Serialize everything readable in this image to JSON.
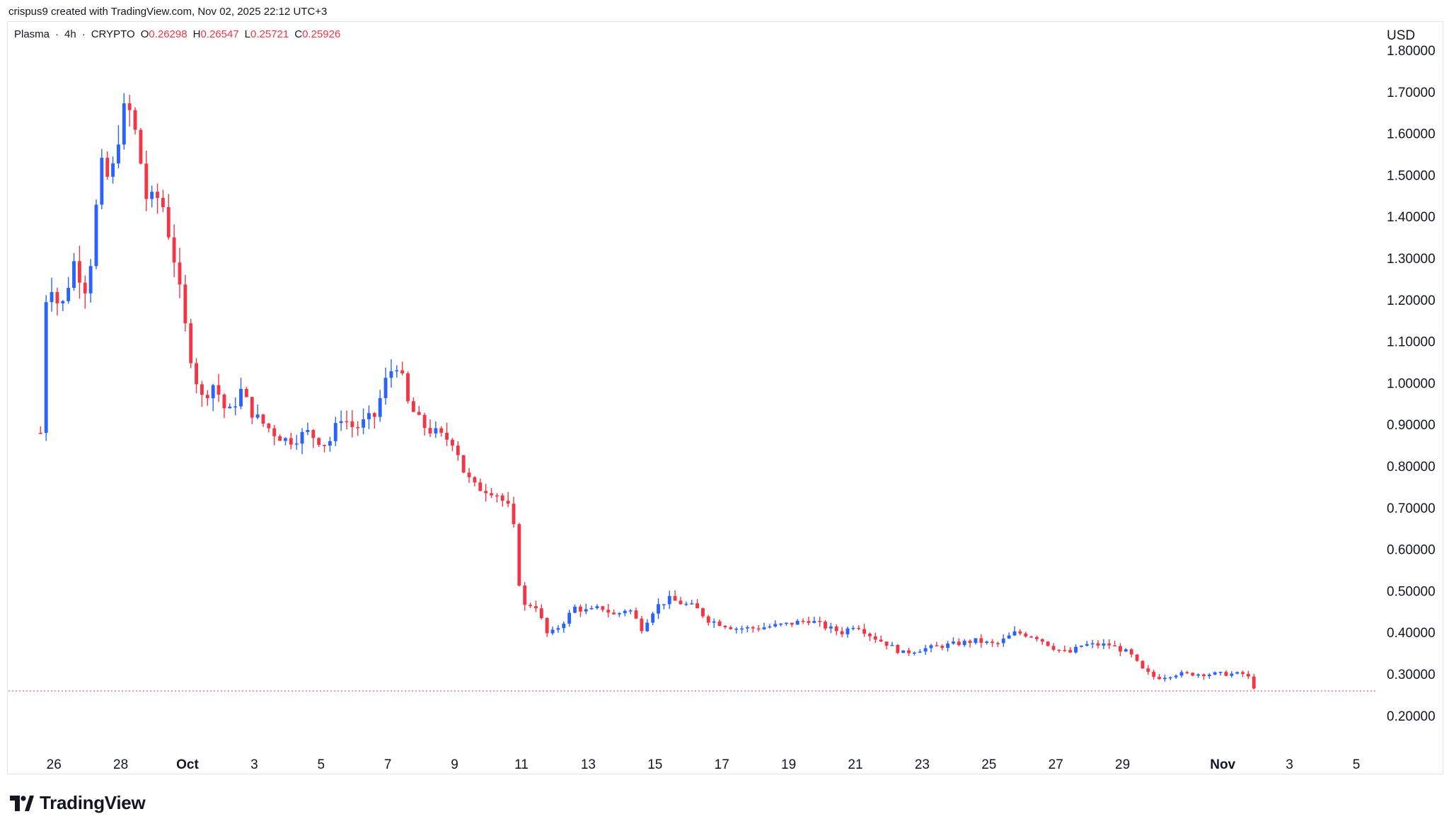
{
  "header": {
    "credit": "crispus9 created with TradingView.com, Nov 02, 2025 22:12 UTC+3"
  },
  "legend": {
    "symbol": "Plasma",
    "interval": "4h",
    "exchange": "CRYPTO",
    "dot": "·",
    "open_key": "O",
    "open": "0.26298",
    "high_key": "H",
    "high": "0.26547",
    "low_key": "L",
    "low": "0.25721",
    "close_key": "C",
    "close": "0.25926"
  },
  "footer": {
    "brand": "TradingView"
  },
  "colors": {
    "up": "#2962ff",
    "down": "#f23645",
    "text": "#131722",
    "grid": "#e0e3eb"
  },
  "chart_data": {
    "type": "candlestick",
    "currency": "USD",
    "ylim": [
      0.1,
      1.86
    ],
    "yticks": [
      "1.80000",
      "1.70000",
      "1.60000",
      "1.50000",
      "1.40000",
      "1.30000",
      "1.20000",
      "1.10000",
      "1.00000",
      "0.90000",
      "0.80000",
      "0.70000",
      "0.60000",
      "0.50000",
      "0.40000",
      "0.30000",
      "0.20000"
    ],
    "xticks": [
      {
        "label": "26",
        "day": -4
      },
      {
        "label": "28",
        "day": -2
      },
      {
        "label": "Oct",
        "day": 0,
        "bold": true
      },
      {
        "label": "3",
        "day": 2
      },
      {
        "label": "5",
        "day": 4
      },
      {
        "label": "7",
        "day": 6
      },
      {
        "label": "9",
        "day": 8
      },
      {
        "label": "11",
        "day": 10
      },
      {
        "label": "13",
        "day": 12
      },
      {
        "label": "15",
        "day": 14
      },
      {
        "label": "17",
        "day": 16
      },
      {
        "label": "19",
        "day": 18
      },
      {
        "label": "21",
        "day": 20
      },
      {
        "label": "23",
        "day": 22
      },
      {
        "label": "25",
        "day": 24
      },
      {
        "label": "27",
        "day": 26
      },
      {
        "label": "29",
        "day": 28
      },
      {
        "label": "Nov",
        "day": 31,
        "bold": true
      },
      {
        "label": "3",
        "day": 33
      },
      {
        "label": "5",
        "day": 35
      }
    ],
    "last_price": 0.25926,
    "keypoints": [
      [
        -4.4,
        0.88
      ],
      [
        -4.2,
        1.27
      ],
      [
        -3.8,
        1.17
      ],
      [
        -3.4,
        1.29
      ],
      [
        -3.0,
        1.22
      ],
      [
        -2.6,
        1.52
      ],
      [
        -2.3,
        1.48
      ],
      [
        -2.0,
        1.63
      ],
      [
        -1.8,
        1.67
      ],
      [
        -1.5,
        1.58
      ],
      [
        -1.2,
        1.43
      ],
      [
        -0.8,
        1.45
      ],
      [
        -0.4,
        1.3
      ],
      [
        0.0,
        1.1
      ],
      [
        0.4,
        0.96
      ],
      [
        0.8,
        1.0
      ],
      [
        1.2,
        0.92
      ],
      [
        1.6,
        0.98
      ],
      [
        2.0,
        0.92
      ],
      [
        2.6,
        0.88
      ],
      [
        3.0,
        0.86
      ],
      [
        3.6,
        0.88
      ],
      [
        4.2,
        0.85
      ],
      [
        4.6,
        0.92
      ],
      [
        5.0,
        0.89
      ],
      [
        5.6,
        0.92
      ],
      [
        6.0,
        1.02
      ],
      [
        6.3,
        1.05
      ],
      [
        6.6,
        0.95
      ],
      [
        7.0,
        0.9
      ],
      [
        7.6,
        0.87
      ],
      [
        8.0,
        0.86
      ],
      [
        8.3,
        0.78
      ],
      [
        8.6,
        0.75
      ],
      [
        9.2,
        0.74
      ],
      [
        9.6,
        0.7
      ],
      [
        9.8,
        0.64
      ],
      [
        10.0,
        0.46
      ],
      [
        10.4,
        0.47
      ],
      [
        10.8,
        0.39
      ],
      [
        11.2,
        0.42
      ],
      [
        11.6,
        0.46
      ],
      [
        12.0,
        0.45
      ],
      [
        12.4,
        0.46
      ],
      [
        12.8,
        0.44
      ],
      [
        13.2,
        0.46
      ],
      [
        13.6,
        0.41
      ],
      [
        14.0,
        0.46
      ],
      [
        14.4,
        0.48
      ],
      [
        14.8,
        0.47
      ],
      [
        15.2,
        0.46
      ],
      [
        15.6,
        0.43
      ],
      [
        16.0,
        0.42
      ],
      [
        16.4,
        0.41
      ],
      [
        17.0,
        0.41
      ],
      [
        18.0,
        0.42
      ],
      [
        18.6,
        0.43
      ],
      [
        19.2,
        0.41
      ],
      [
        19.6,
        0.4
      ],
      [
        20.0,
        0.42
      ],
      [
        20.5,
        0.39
      ],
      [
        21.0,
        0.37
      ],
      [
        21.4,
        0.35
      ],
      [
        22.0,
        0.36
      ],
      [
        22.8,
        0.37
      ],
      [
        23.6,
        0.38
      ],
      [
        24.2,
        0.37
      ],
      [
        24.8,
        0.4
      ],
      [
        25.4,
        0.39
      ],
      [
        26.0,
        0.36
      ],
      [
        26.4,
        0.35
      ],
      [
        26.8,
        0.37
      ],
      [
        27.6,
        0.37
      ],
      [
        28.2,
        0.35
      ],
      [
        28.6,
        0.31
      ],
      [
        29.0,
        0.29
      ],
      [
        29.6,
        0.3
      ],
      [
        30.4,
        0.3
      ],
      [
        31.2,
        0.3
      ],
      [
        31.7,
        0.3
      ],
      [
        32.0,
        0.26
      ]
    ]
  }
}
